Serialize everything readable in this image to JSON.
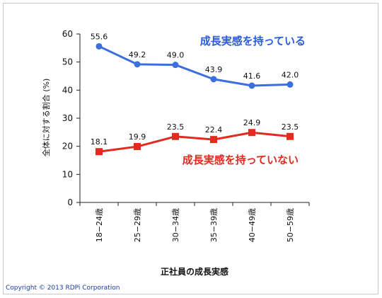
{
  "chart_data": {
    "type": "line",
    "categories": [
      "18−24歳",
      "25−29歳",
      "30−34歳",
      "35−39歳",
      "40−49歳",
      "50−59歳"
    ],
    "series": [
      {
        "name": "成長実感を持っている",
        "values": [
          55.6,
          49.2,
          49.0,
          43.9,
          41.6,
          42.0
        ],
        "color": "#3b6fe0",
        "marker": "circle"
      },
      {
        "name": "成長実感を持っていない",
        "values": [
          18.1,
          19.9,
          23.5,
          22.4,
          24.9,
          23.5
        ],
        "color": "#e22a1f",
        "marker": "square"
      }
    ],
    "y_ticks": [
      "0",
      "10",
      "20",
      "30",
      "40",
      "50",
      "60"
    ],
    "ylim": [
      0,
      60
    ],
    "ylabel": "全体に対する割合 (%)",
    "xlabel": "正社員の成長実感",
    "grid": false,
    "legend": "inline labels"
  },
  "copyright": "Copyright © 2013  RDPi Corporation"
}
